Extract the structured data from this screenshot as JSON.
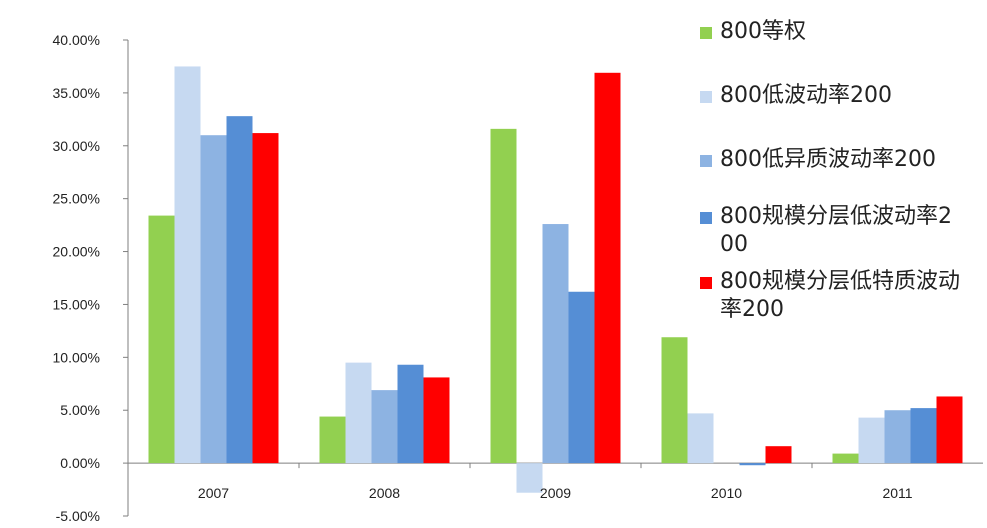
{
  "chart_data": {
    "type": "bar",
    "categories": [
      "2007",
      "2008",
      "2009",
      "2010",
      "2011"
    ],
    "series": [
      {
        "name": "800等权",
        "color": "#92d050",
        "values": [
          23.4,
          4.4,
          31.6,
          11.9,
          0.9
        ]
      },
      {
        "name": "800低波动率200",
        "color": "#c6d9f1",
        "values": [
          37.5,
          9.5,
          -2.8,
          4.7,
          4.3
        ]
      },
      {
        "name": "800低异质波动率200",
        "color": "#8db3e2",
        "values": [
          31.0,
          6.9,
          22.6,
          0.0,
          5.0
        ]
      },
      {
        "name": "800规模分层低波动率200",
        "color": "#558ed5",
        "values": [
          32.8,
          9.3,
          16.2,
          -0.2,
          5.2
        ]
      },
      {
        "name": "800规模分层低特质波动率200",
        "color": "#ff0000",
        "values": [
          31.2,
          8.1,
          36.9,
          1.6,
          6.3
        ]
      }
    ],
    "y_ticks": [
      "40.00%",
      "35.00%",
      "30.00%",
      "25.00%",
      "20.00%",
      "15.00%",
      "10.00%",
      "5.00%",
      "0.00%",
      "-5.00%"
    ],
    "ylim": [
      -5,
      40
    ],
    "unit": "%",
    "legend_position": "right",
    "grid": false
  }
}
